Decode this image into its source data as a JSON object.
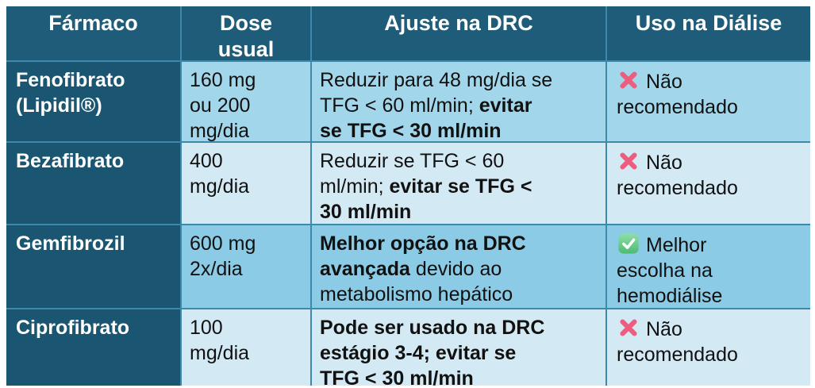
{
  "table": {
    "headers": [
      "Fármaco",
      "Dose\nusual",
      "Ajuste na DRC",
      "Uso na Diálise"
    ],
    "rows": [
      {
        "drug": "Fenofibrato\n(Lipidil®)",
        "dose": "160 mg\nou 200\nmg/dia",
        "ajuste_segments": [
          {
            "text": "Reduzir para 48 mg/dia se\nTFG < 60 ml/min; ",
            "bold": false
          },
          {
            "text": "evitar\nse TFG < 30 ml/min",
            "bold": true
          }
        ],
        "dialise": {
          "icon": "cross-mark",
          "text": "Não\nrecomendado"
        }
      },
      {
        "drug": "Bezafibrato",
        "dose": "400\nmg/dia",
        "ajuste_segments": [
          {
            "text": "Reduzir se TFG < 60\nml/min; ",
            "bold": false
          },
          {
            "text": "evitar se TFG <\n30 ml/min",
            "bold": true
          }
        ],
        "dialise": {
          "icon": "cross-mark",
          "text": "Não\nrecomendado"
        }
      },
      {
        "drug": "Gemfibrozil",
        "dose": "600 mg\n2x/dia",
        "ajuste_segments": [
          {
            "text": "Melhor opção na DRC\navançada",
            "bold": true
          },
          {
            "text": " devido ao\nmetabolismo hepático",
            "bold": false
          }
        ],
        "dialise": {
          "icon": "check-mark",
          "text": "Melhor\nescolha na\nhemodiálise"
        }
      },
      {
        "drug": "Ciprofibrato",
        "dose": "100\nmg/dia",
        "ajuste_segments": [
          {
            "text": "Pode ser usado na DRC\nestágio 3-4; evitar se\nTFG < 30 ml/min",
            "bold": true
          }
        ],
        "dialise": {
          "icon": "cross-mark",
          "text": "Não\nrecomendado"
        }
      }
    ]
  },
  "colors": {
    "header_bg": "#1e5c7a",
    "drug_column_bg": "#1a5571",
    "row_medium": "#a2d6ea",
    "row_medium_alt": "#8bcbe5",
    "row_light": "#d3eaf5",
    "grid_line": "#3d89ac",
    "cross_icon": "#ee5c7e",
    "check_icon": "#57c17e",
    "header_text": "#ffffff",
    "body_text": "#111111"
  }
}
